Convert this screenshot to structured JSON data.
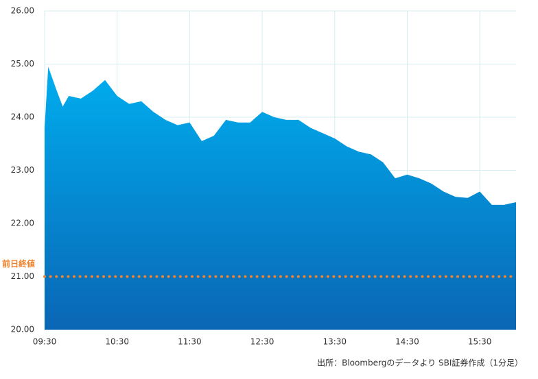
{
  "chart_data": {
    "type": "area",
    "x": [
      "09:30",
      "09:33",
      "09:40",
      "09:45",
      "09:50",
      "10:00",
      "10:10",
      "10:20",
      "10:30",
      "10:40",
      "10:50",
      "11:00",
      "11:10",
      "11:20",
      "11:30",
      "11:40",
      "11:50",
      "12:00",
      "12:10",
      "12:20",
      "12:30",
      "12:40",
      "12:50",
      "13:00",
      "13:10",
      "13:20",
      "13:30",
      "13:40",
      "13:50",
      "14:00",
      "14:10",
      "14:20",
      "14:30",
      "14:40",
      "14:50",
      "15:00",
      "15:10",
      "15:20",
      "15:30",
      "15:40",
      "15:50",
      "16:00"
    ],
    "series": [
      {
        "values": [
          23.8,
          24.95,
          24.5,
          24.2,
          24.4,
          24.35,
          24.5,
          24.7,
          24.4,
          24.25,
          24.3,
          24.1,
          23.95,
          23.85,
          23.9,
          23.55,
          23.65,
          23.95,
          23.9,
          23.9,
          24.1,
          24.0,
          23.95,
          23.95,
          23.8,
          23.7,
          23.6,
          23.45,
          23.35,
          23.3,
          23.15,
          22.85,
          22.92,
          22.85,
          22.75,
          22.6,
          22.5,
          22.48,
          22.6,
          22.35,
          22.35,
          22.4
        ],
        "gradient": [
          "#00aeef",
          "#0a66b5"
        ]
      }
    ],
    "xlim": [
      "09:30",
      "16:00"
    ],
    "xticks": [
      "09:30",
      "10:30",
      "11:30",
      "12:30",
      "13:30",
      "14:30",
      "15:30"
    ],
    "ylim": [
      20,
      26
    ],
    "yticks": [
      {
        "value": 20,
        "label": "20.00"
      },
      {
        "value": 21,
        "label": "21.00"
      },
      {
        "value": 22,
        "label": "22.00"
      },
      {
        "value": 23,
        "label": "23.00"
      },
      {
        "value": 24,
        "label": "24.00"
      },
      {
        "value": 25,
        "label": "25.00"
      },
      {
        "value": 26,
        "label": "26.00"
      }
    ],
    "grid": true,
    "grid_color": "#d6eef2",
    "reference_line": {
      "label": "前日終値",
      "value": 21,
      "color": "#f0822e"
    },
    "source": "出所：Bloombergのデータより SBI証券作成（1分足）"
  }
}
